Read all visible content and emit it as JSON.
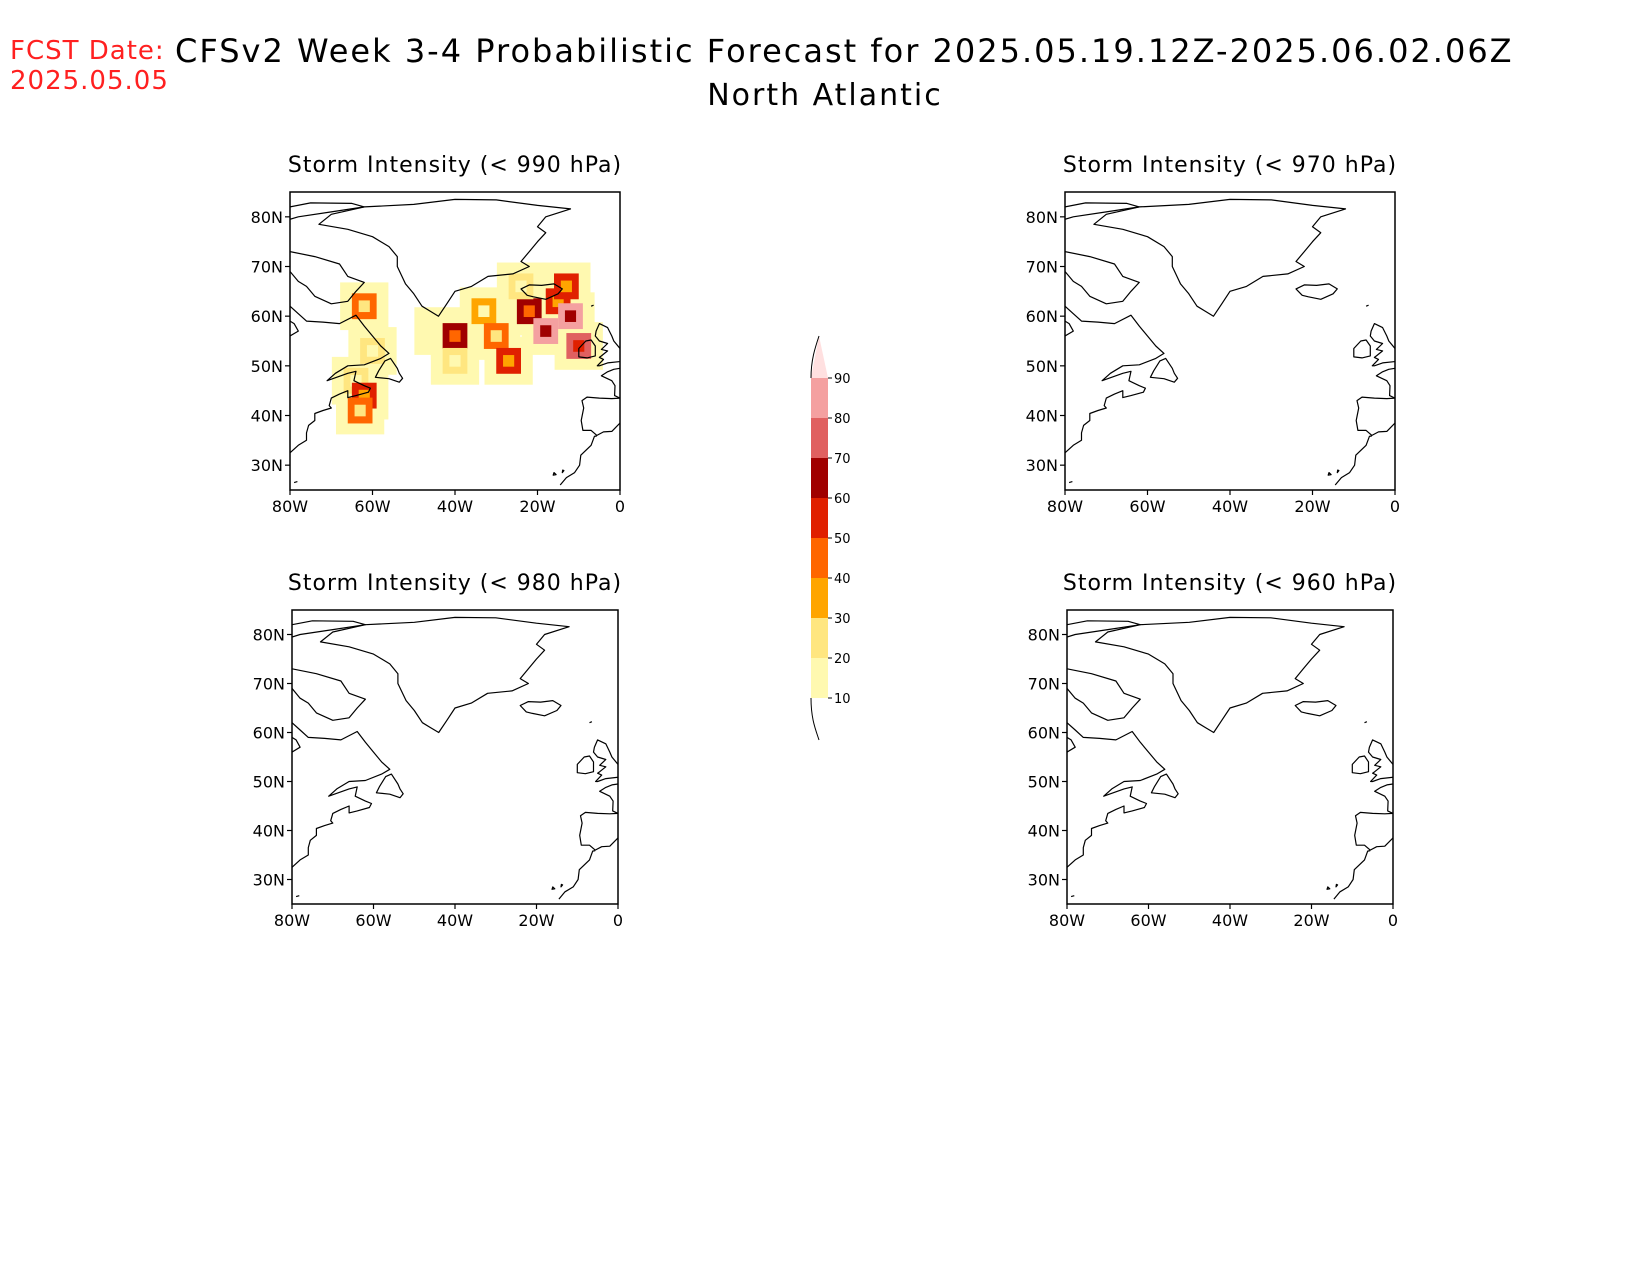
{
  "header": {
    "fcst_label": "FCST Date:",
    "fcst_date": "2025.05.05",
    "title": "CFSv2 Week 3-4 Probabilistic Forecast for 2025.05.19.12Z-2025.06.02.06Z",
    "subtitle": "North Atlantic"
  },
  "map": {
    "lon_range": [
      -80,
      0
    ],
    "lat_range": [
      25,
      85
    ],
    "x_ticks": [
      "80W",
      "60W",
      "40W",
      "20W",
      "0"
    ],
    "y_ticks": [
      "30N",
      "40N",
      "50N",
      "60N",
      "70N",
      "80N"
    ]
  },
  "panels": [
    {
      "title": "Storm Intensity (< 990 hPa)",
      "has_data": true
    },
    {
      "title": "Storm Intensity (< 970 hPa)",
      "has_data": false
    },
    {
      "title": "Storm Intensity (< 980 hPa)",
      "has_data": false
    },
    {
      "title": "Storm Intensity (< 960 hPa)",
      "has_data": false
    }
  ],
  "colorbar": {
    "labels": [
      "10",
      "20",
      "30",
      "40",
      "50",
      "60",
      "70",
      "80",
      "90"
    ],
    "colors": [
      "#fff9b0",
      "#ffe680",
      "#ffa500",
      "#ff6600",
      "#e02000",
      "#a00000",
      "#e06060",
      "#f4a0a0",
      "#ffe0e0"
    ]
  },
  "chart_data": {
    "type": "heatmap",
    "units": "%",
    "levels": [
      10,
      20,
      30,
      40,
      50,
      60,
      70,
      80,
      90
    ],
    "panel": "Storm Intensity (< 990 hPa)",
    "cells": [
      {
        "lon": -62,
        "lat": 62,
        "value": 45
      },
      {
        "lon": -60,
        "lat": 53,
        "value": 20
      },
      {
        "lon": -64,
        "lat": 47,
        "value": 25
      },
      {
        "lon": -62,
        "lat": 44,
        "value": 55
      },
      {
        "lon": -63,
        "lat": 41,
        "value": 40
      },
      {
        "lon": -44,
        "lat": 57,
        "value": 15
      },
      {
        "lon": -40,
        "lat": 56,
        "value": 60
      },
      {
        "lon": -40,
        "lat": 51,
        "value": 20
      },
      {
        "lon": -33,
        "lat": 61,
        "value": 30
      },
      {
        "lon": -30,
        "lat": 56,
        "value": 45
      },
      {
        "lon": -27,
        "lat": 51,
        "value": 50
      },
      {
        "lon": -22,
        "lat": 61,
        "value": 60
      },
      {
        "lon": -18,
        "lat": 57,
        "value": 80
      },
      {
        "lon": -15,
        "lat": 63,
        "value": 55
      },
      {
        "lon": -12,
        "lat": 60,
        "value": 85
      },
      {
        "lon": -10,
        "lat": 54,
        "value": 70
      },
      {
        "lon": -13,
        "lat": 66,
        "value": 50
      },
      {
        "lon": -24,
        "lat": 66,
        "value": 20
      }
    ]
  }
}
